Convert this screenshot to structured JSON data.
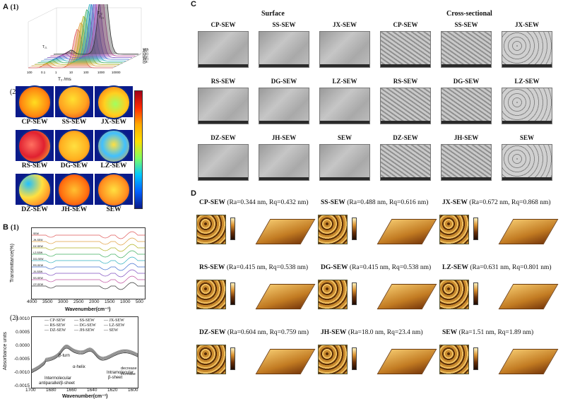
{
  "panels": {
    "A": {
      "letter": "A",
      "sub1": "(1)",
      "sub2": "(2)"
    },
    "B": {
      "letter": "B",
      "sub1": "(1)",
      "sub2": "(2)"
    },
    "C": {
      "letter": "C"
    },
    "D": {
      "letter": "D"
    }
  },
  "panel_a1": {
    "xlabel": "T₂ /ms",
    "xticks": [
      "100",
      "0.1",
      "1",
      "10",
      "100",
      "1000",
      "10000"
    ],
    "peak_labels": [
      "T₂₁",
      "T₂₂",
      "T₂₃"
    ],
    "samples": [
      "CP-SEW",
      "SS-SEW",
      "JX-SEW",
      "RS-SEW",
      "DG-SEW",
      "LZ-SEW",
      "DZ-SEW",
      "JH-SEW",
      "SEW"
    ]
  },
  "panel_a2": {
    "rows": [
      [
        "CP-SEW",
        "SS-SEW",
        "JX-SEW"
      ],
      [
        "RS-SEW",
        "DG-SEW",
        "LZ-SEW"
      ],
      [
        "DZ-SEW",
        "JH-SEW",
        "SEW"
      ]
    ]
  },
  "panel_b1": {
    "ylabel": "Transmittance(%)",
    "xlabel": "Wavenumber(cm⁻¹)",
    "xticks": [
      "4000",
      "3500",
      "3000",
      "2500",
      "2000",
      "1500",
      "1000",
      "500"
    ],
    "series": [
      "SEW",
      "JH-SEW",
      "DZ-SEW",
      "LZ-SEW",
      "DG-SEW",
      "RS-SEW",
      "JX-SEW",
      "SS-SEW",
      "CP-SEW"
    ]
  },
  "panel_b2": {
    "ylabel": "Absorbance units",
    "xlabel": "Wavenumber(cm⁻¹)",
    "yticks": [
      "0.0010",
      "0.0005",
      "0.0000",
      "-0.0005",
      "-0.0010",
      "-0.0015"
    ],
    "xticks": [
      "1700",
      "1680",
      "1660",
      "1640",
      "1620",
      "1600"
    ],
    "legend": [
      "CP-SEW",
      "SS-SEW",
      "JX-SEW",
      "RS-SEW",
      "DG-SEW",
      "LZ-SEW",
      "DZ-SEW",
      "JH-SEW",
      "SEW"
    ],
    "annotations": {
      "beta_turn": "β-turn",
      "alpha_helix": "α-helix",
      "intramolecular": "Intramolecular",
      "beta_sheet": "β-sheet",
      "intermolecular": "Intermolecular",
      "antiparallel": "antiparallel/β-sheet",
      "decrease": "decrease",
      "increase": "increase"
    }
  },
  "panel_c": {
    "header_surface": "Surface",
    "header_cross": "Cross-sectional",
    "rows": [
      [
        "CP-SEW",
        "SS-SEW",
        "JX-SEW",
        "CP-SEW",
        "SS-SEW",
        "JX-SEW"
      ],
      [
        "RS-SEW",
        "DG-SEW",
        "LZ-SEW",
        "RS-SEW",
        "DG-SEW",
        "LZ-SEW"
      ],
      [
        "DZ-SEW",
        "JH-SEW",
        "SEW",
        "DZ-SEW",
        "JH-SEW",
        "SEW"
      ]
    ]
  },
  "panel_d": {
    "items": [
      {
        "name": "CP-SEW",
        "rest": "(Ra=0.344 nm, Rq=0.432 nm)"
      },
      {
        "name": "SS-SEW",
        "rest": "(Ra=0.488 nm, Rq=0.616 nm)"
      },
      {
        "name": "JX-SEW",
        "rest": "(Ra=0.672 nm, Rq=0.868 nm)"
      },
      {
        "name": "RS-SEW",
        "rest": "(Ra=0.415 nm, Rq=0.538 nm)"
      },
      {
        "name": "DG-SEW",
        "rest": "(Ra=0.415 nm, Rq=0.538 nm)"
      },
      {
        "name": "LZ-SEW",
        "rest": "(Ra=0.631 nm, Rq=0.801 nm)"
      },
      {
        "name": "DZ-SEW",
        "rest": "(Ra=0.604 nm, Rq=0.759 nm)"
      },
      {
        "name": "JH-SEW",
        "rest": "(Ra=18.0 nm, Rq=23.4 nm)"
      },
      {
        "name": "SEW",
        "rest": "(Ra=1.51 nm, Rq=1.89 nm)"
      }
    ]
  },
  "colors": {
    "heat_top": "#a0001a",
    "heat_mid": "#ffe000",
    "heat_low": "#00c8ff",
    "heat_bottom": "#0a1a8a",
    "afm_dark": "#2a1204",
    "afm_light": "#f5c766"
  }
}
